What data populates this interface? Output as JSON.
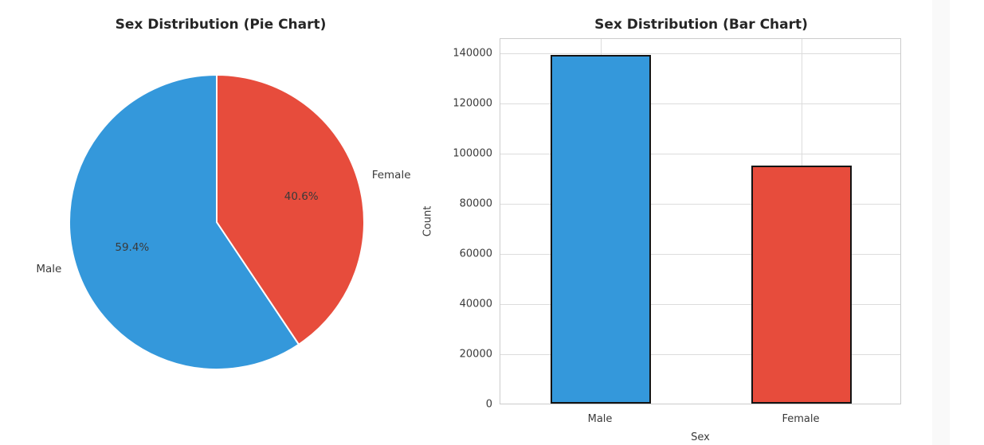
{
  "figure": {
    "background": "#ffffff",
    "text_color": "#3a3a3a",
    "title_color": "#262626",
    "grid_color": "#dcdcdc",
    "spine_color": "#cccccc",
    "bar_edge_color": "#141414",
    "scrollbar_color": "#f9f9f9"
  },
  "chart_data": [
    {
      "type": "pie",
      "title": "Sex Distribution (Pie Chart)",
      "labels": [
        "Male",
        "Female"
      ],
      "values_pct": [
        59.4,
        40.6
      ],
      "pct_labels": [
        "59.4%",
        "40.6%"
      ],
      "colors": [
        "#3498db",
        "#e74c3c"
      ],
      "start_angle": 90,
      "counterclock": true,
      "wedge_edge_color": "#ffffff",
      "label_distance": 1.1,
      "pct_distance": 0.6
    },
    {
      "type": "bar",
      "title": "Sex Distribution (Bar Chart)",
      "categories": [
        "Male",
        "Female"
      ],
      "values": [
        139000,
        95000
      ],
      "colors": [
        "#3498db",
        "#e74c3c"
      ],
      "xlabel": "Sex",
      "ylabel": "Count",
      "ylim": [
        0,
        145950
      ],
      "yticks": [
        0,
        20000,
        40000,
        60000,
        80000,
        100000,
        120000,
        140000
      ],
      "ytick_labels": [
        "0",
        "20000",
        "40000",
        "60000",
        "80000",
        "100000",
        "120000",
        "140000"
      ],
      "grid": true,
      "legend": false
    }
  ]
}
